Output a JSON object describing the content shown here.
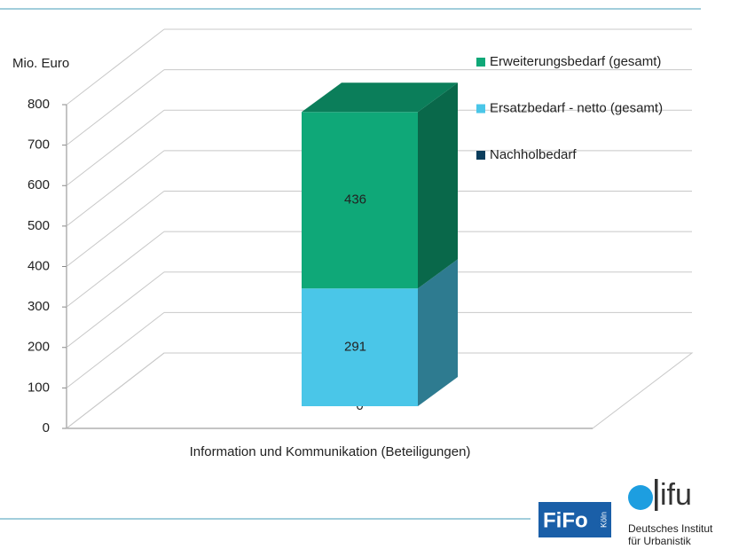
{
  "chart_data": {
    "type": "bar3d_stacked",
    "y_label": "Mio. Euro",
    "categories": [
      "Information und Kommunikation (Beteiligungen)"
    ],
    "series": [
      {
        "name": "Nachholbedarf",
        "color": "#0b3d5c",
        "values": [
          0
        ]
      },
      {
        "name": "Ersatzbedarf - netto (gesamt)",
        "color": "#4ac6e8",
        "values": [
          291
        ]
      },
      {
        "name": "Erweiterungsbedarf (gesamt)",
        "color": "#0fa878",
        "values": [
          436
        ]
      }
    ],
    "ylim": [
      0,
      800
    ],
    "yticks": [
      0,
      100,
      200,
      300,
      400,
      500,
      600,
      700,
      800
    ],
    "grid": true,
    "legend": "top-right"
  },
  "logos": {
    "fifo": "FiFo",
    "fifo_city": "Köln",
    "difu": "ifu",
    "difu_name_1": "Deutsches Institut",
    "difu_name_2": "für Urbanistik"
  }
}
